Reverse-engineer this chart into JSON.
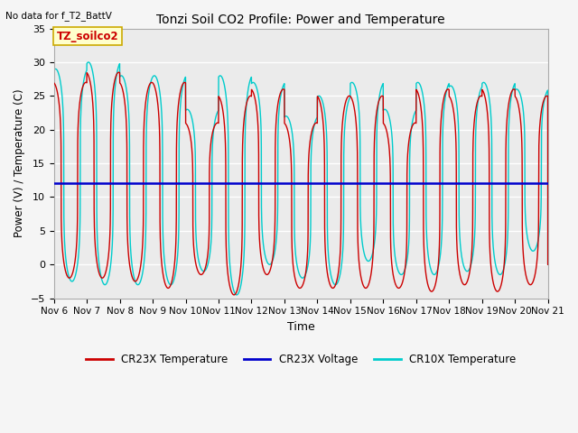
{
  "title": "Tonzi Soil CO2 Profile: Power and Temperature",
  "subtitle": "No data for f_T2_BattV",
  "ylabel": "Power (V) / Temperature (C)",
  "xlabel": "Time",
  "ylim": [
    -5,
    35
  ],
  "yticks": [
    -5,
    0,
    5,
    10,
    15,
    20,
    25,
    30,
    35
  ],
  "n_days": 15,
  "xtick_labels": [
    "Nov 6",
    "Nov 7",
    "Nov 8",
    "Nov 9",
    "Nov 10",
    "Nov 11",
    "Nov 12",
    "Nov 13",
    "Nov 14",
    "Nov 15",
    "Nov 16",
    "Nov 17",
    "Nov 18",
    "Nov 19",
    "Nov 20",
    "Nov 21"
  ],
  "voltage_value": 12.0,
  "legend_label_box": "TZ_soilco2",
  "legend_entries": [
    "CR23X Temperature",
    "CR23X Voltage",
    "CR10X Temperature"
  ],
  "legend_colors": [
    "#cc0000",
    "#0000cc",
    "#00cccc"
  ],
  "plot_bg_color": "#ebebeb",
  "grid_color": "#ffffff",
  "red_color": "#cc0000",
  "blue_color": "#0000cc",
  "cyan_color": "#00cccc",
  "fig_bg_color": "#f5f5f5",
  "cyan_maxima": [
    29,
    30,
    28,
    28,
    23,
    28,
    27,
    22,
    25,
    27,
    23,
    27,
    26.5,
    27,
    26
  ],
  "red_maxima": [
    27,
    28.5,
    27,
    27,
    21,
    25,
    26,
    21,
    25,
    25,
    21,
    26,
    25,
    26,
    25
  ],
  "cyan_minima": [
    -2.5,
    -3,
    -3,
    -3,
    -1,
    -4.5,
    0,
    -2,
    -3,
    0.5,
    -1.5,
    -1.5,
    -1,
    -1.5,
    2
  ],
  "red_minima": [
    -2,
    -2,
    -2.5,
    -3.5,
    -1.5,
    -4.5,
    -1.5,
    -3.5,
    -3.5,
    -3.5,
    -3.5,
    -4,
    -3,
    -4,
    -3
  ],
  "cyan_phase": 0.0,
  "red_phase": 0.08,
  "peak_sharpness": 4.0
}
